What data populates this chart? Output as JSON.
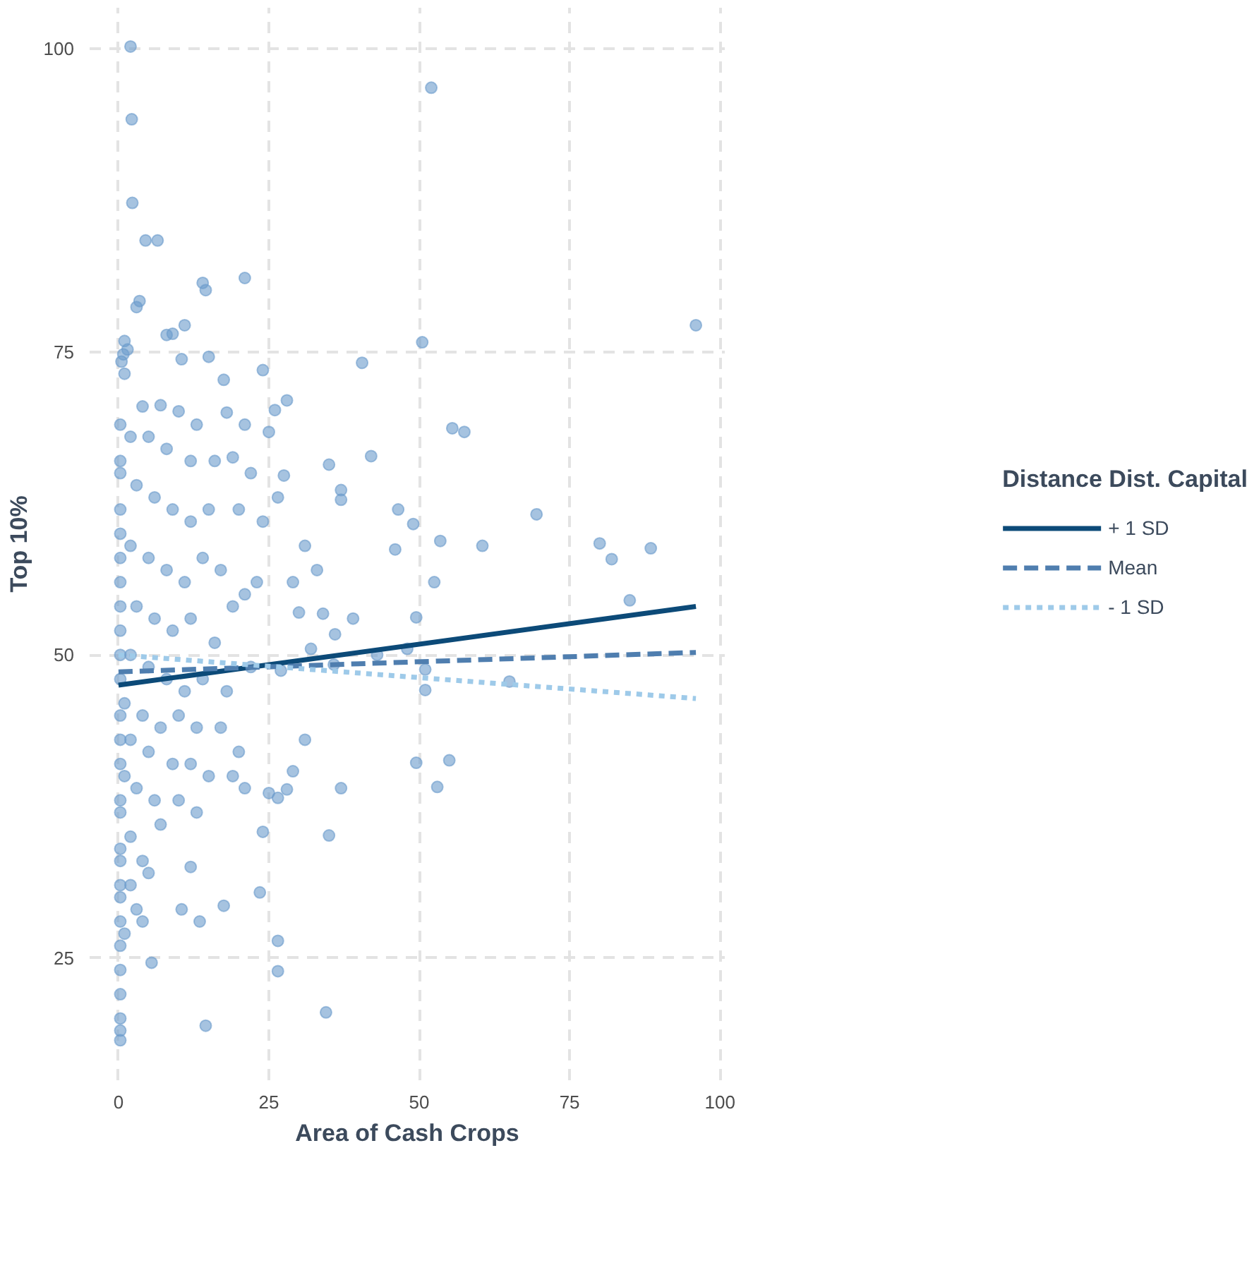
{
  "chart_data": {
    "type": "scatter",
    "xlabel": "Area of Cash Crops",
    "ylabel": "Top 10%",
    "legend_title": "Distance Dist. Capital",
    "legend": "right",
    "grid": true,
    "xlim": [
      -4.8,
      100.8
    ],
    "ylim": [
      14.9,
      103.4
    ],
    "xticks": [
      0,
      25,
      50,
      75,
      100
    ],
    "yticks": [
      25,
      50,
      75,
      100
    ],
    "series": [
      {
        "marker": "circle",
        "color": "#6a9bcb",
        "x": [
          52,
          96,
          50.5,
          55.5,
          57.5,
          40.5,
          42,
          35,
          37,
          37,
          46.5,
          49,
          53.5,
          60.5,
          69.5,
          80,
          82,
          88.5,
          85,
          46,
          52.5,
          49.5,
          48,
          51,
          51,
          65,
          49.5,
          55,
          53,
          37,
          35,
          34.5,
          33,
          36,
          30,
          27.5,
          26.5,
          28,
          25,
          31,
          29,
          27,
          31,
          34,
          32,
          29,
          28,
          26.5,
          25,
          24,
          23.5,
          26.5,
          26.5,
          35.8,
          39,
          43,
          2,
          2.2,
          2.3,
          4.5,
          6.5,
          14,
          14.5,
          21,
          3.5,
          3,
          8,
          9,
          11,
          1,
          1.5,
          0.5,
          1,
          0.8,
          15,
          10.5,
          17.5,
          24,
          4,
          7,
          10,
          13,
          18,
          21,
          26,
          0.3,
          2,
          5,
          8,
          12,
          16,
          19,
          22,
          0.3,
          3,
          6,
          9,
          12,
          15,
          20,
          24,
          0.3,
          2,
          5,
          8,
          11,
          14,
          17,
          21,
          23,
          0.3,
          3,
          6,
          9,
          12,
          16,
          19,
          0.3,
          2,
          5,
          8,
          11,
          14,
          18,
          22,
          0.3,
          1,
          4,
          7,
          10,
          13,
          17,
          20,
          0.3,
          2,
          5,
          9,
          12,
          15,
          19,
          21,
          0.3,
          1,
          3,
          6,
          10,
          13,
          7,
          0.3,
          0.3,
          0.3,
          0.3,
          0.3,
          0.3,
          0.3,
          0.3,
          0.3,
          2,
          4,
          2,
          3,
          5,
          1,
          12,
          10.5,
          13.5,
          4,
          17.5,
          5.5,
          14.5,
          0.3,
          0.3,
          0.3,
          0.3,
          0.3,
          0.3,
          0.3,
          0.3,
          0.3,
          0.3
        ],
        "values": [
          96.8,
          77.2,
          75.8,
          68.7,
          68.4,
          74.1,
          66.4,
          65.7,
          63.6,
          62.8,
          62,
          60.8,
          59.4,
          59,
          61.6,
          59.2,
          57.9,
          58.8,
          54.5,
          58.7,
          56,
          53.1,
          50.5,
          48.8,
          47.1,
          47.8,
          41.1,
          41.3,
          39.1,
          39,
          35.1,
          20.5,
          57,
          51.7,
          53.5,
          64.8,
          63,
          71,
          68.4,
          59,
          56,
          48.7,
          43,
          53.4,
          50.5,
          40.4,
          38.9,
          38.2,
          38.6,
          35.4,
          30.4,
          26.4,
          23.9,
          49.2,
          53,
          50,
          100.2,
          94.2,
          87.3,
          84.2,
          84.2,
          80.7,
          80.1,
          81.1,
          79.2,
          78.7,
          76.4,
          76.5,
          77.2,
          75.9,
          75.2,
          74.2,
          73.2,
          74.8,
          74.6,
          74.4,
          72.7,
          73.5,
          70.5,
          70.6,
          70.1,
          69,
          70,
          69,
          70.2,
          69,
          68,
          68,
          67,
          66,
          66,
          66.3,
          65,
          65,
          64,
          63,
          62,
          61,
          62,
          62,
          61,
          60,
          59,
          58,
          57,
          56,
          58,
          57,
          55,
          56,
          56,
          54,
          53,
          52,
          53,
          51,
          54,
          52,
          50,
          49,
          48,
          47,
          48,
          47,
          49,
          48,
          46,
          45,
          44,
          45,
          44,
          44,
          42,
          45,
          43,
          42,
          41,
          41,
          40,
          40,
          39,
          41,
          40,
          39,
          38,
          38,
          37,
          36,
          37,
          34,
          31,
          28,
          26,
          24,
          22,
          20,
          18.2,
          35,
          33,
          31,
          29,
          32,
          27,
          32.5,
          29,
          28,
          28,
          29.3,
          24.6,
          19.4,
          19,
          30,
          33,
          38,
          43,
          50,
          54,
          58,
          62,
          66
        ]
      },
      {
        "type": "line",
        "name": "+ 1 SD",
        "color": "#0c4a78",
        "line_style": "solid",
        "x": [
          0,
          96
        ],
        "values": [
          47.5,
          54.0
        ]
      },
      {
        "type": "line",
        "name": "Mean",
        "color": "#4f7eaf",
        "line_style": "dashed",
        "x": [
          0,
          96
        ],
        "values": [
          48.6,
          50.2
        ]
      },
      {
        "type": "line",
        "name": "- 1 SD",
        "color": "#9ecae9",
        "line_style": "dotted",
        "x": [
          0,
          96
        ],
        "values": [
          50.0,
          46.4
        ]
      }
    ]
  }
}
